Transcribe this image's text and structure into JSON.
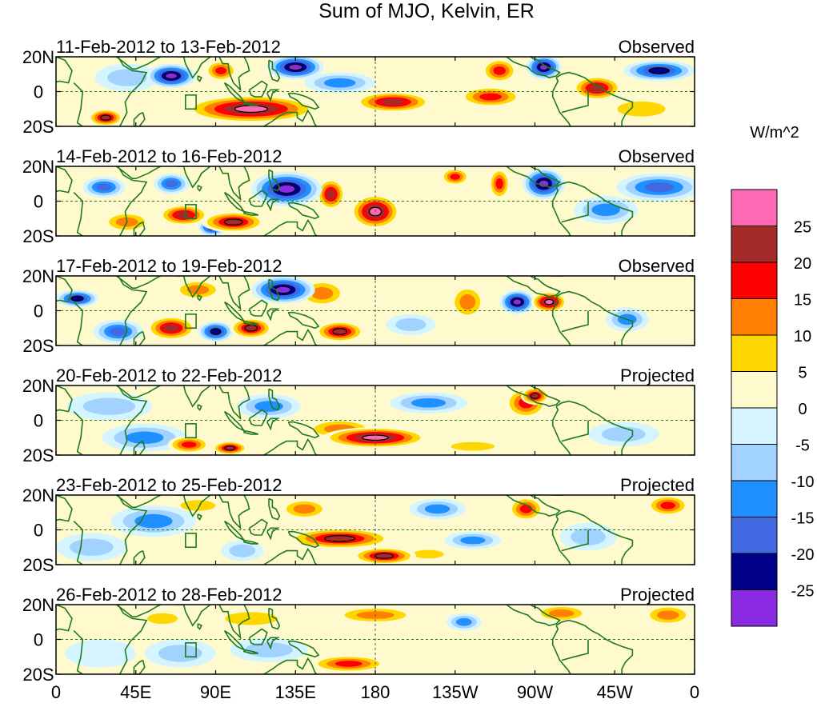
{
  "chart_data": {
    "type": "heatmap",
    "title": "Sum of MJO, Kelvin, ER",
    "colorbar": {
      "units": "W/m^2",
      "bins": [
        {
          "color": "#ff69b4",
          "label": ""
        },
        {
          "color": "#a52a2a",
          "label": "25"
        },
        {
          "color": "#ff0000",
          "label": "20"
        },
        {
          "color": "#ff7f00",
          "label": "15"
        },
        {
          "color": "#ffd700",
          "label": "10"
        },
        {
          "color": "#fffacd",
          "label": "5"
        },
        {
          "color": "#d4f5ff",
          "label": "0"
        },
        {
          "color": "#a2d2ff",
          "label": "-5"
        },
        {
          "color": "#1e90ff",
          "label": "-10"
        },
        {
          "color": "#4169e1",
          "label": "-15"
        },
        {
          "color": "#00008b",
          "label": "-20"
        },
        {
          "color": "#8a2be2",
          "label": "-25"
        }
      ]
    },
    "lon_range": [
      0,
      360
    ],
    "lat_range": [
      -20,
      20
    ],
    "x_ticks": [
      {
        "lon": 0,
        "label": "0"
      },
      {
        "lon": 45,
        "label": "45E"
      },
      {
        "lon": 90,
        "label": "90E"
      },
      {
        "lon": 135,
        "label": "135E"
      },
      {
        "lon": 180,
        "label": "180"
      },
      {
        "lon": 225,
        "label": "135W"
      },
      {
        "lon": 270,
        "label": "90W"
      },
      {
        "lon": 315,
        "label": "45W"
      },
      {
        "lon": 360,
        "label": "0"
      }
    ],
    "y_ticks": [
      {
        "lat": 20,
        "label": "20N"
      },
      {
        "lat": 0,
        "label": "0"
      },
      {
        "lat": -20,
        "label": "20S"
      }
    ],
    "panels": [
      {
        "date": "11-Feb-2012 to 13-Feb-2012",
        "type": "Observed",
        "features": [
          {
            "lon": 65,
            "lat": 9,
            "rx": 14,
            "ry": 7,
            "v": -29
          },
          {
            "lon": 93,
            "lat": 12,
            "rx": 9,
            "ry": 6,
            "v": 17
          },
          {
            "lon": 135,
            "lat": 14,
            "rx": 16,
            "ry": 7,
            "v": -29
          },
          {
            "lon": 110,
            "lat": -10,
            "rx": 38,
            "ry": 8,
            "v": 29
          },
          {
            "lon": 28,
            "lat": -15,
            "rx": 10,
            "ry": 5,
            "v": 26
          },
          {
            "lon": 190,
            "lat": -6,
            "rx": 22,
            "ry": 6,
            "v": 22
          },
          {
            "lon": 245,
            "lat": -3,
            "rx": 18,
            "ry": 6,
            "v": 17
          },
          {
            "lon": 250,
            "lat": 12,
            "rx": 10,
            "ry": 7,
            "v": 17
          },
          {
            "lon": 275,
            "lat": 14,
            "rx": 10,
            "ry": 7,
            "v": -29
          },
          {
            "lon": 305,
            "lat": 2,
            "rx": 14,
            "ry": 7,
            "v": 22
          },
          {
            "lon": 340,
            "lat": 12,
            "rx": 20,
            "ry": 6,
            "v": -24
          },
          {
            "lon": 160,
            "lat": 5,
            "rx": 20,
            "ry": 6,
            "v": -12
          },
          {
            "lon": 40,
            "lat": 8,
            "rx": 18,
            "ry": 8,
            "v": -8
          },
          {
            "lon": 330,
            "lat": -10,
            "rx": 22,
            "ry": 7,
            "v": 8
          }
        ]
      },
      {
        "date": "14-Feb-2012 to 16-Feb-2012",
        "type": "Observed",
        "features": [
          {
            "lon": 130,
            "lat": 7,
            "rx": 20,
            "ry": 10,
            "v": -29
          },
          {
            "lon": 72,
            "lat": -8,
            "rx": 14,
            "ry": 6,
            "v": 22
          },
          {
            "lon": 100,
            "lat": -12,
            "rx": 18,
            "ry": 6,
            "v": 26
          },
          {
            "lon": 180,
            "lat": -6,
            "rx": 14,
            "ry": 10,
            "v": 29
          },
          {
            "lon": 155,
            "lat": 4,
            "rx": 8,
            "ry": 9,
            "v": 22
          },
          {
            "lon": 88,
            "lat": -15,
            "rx": 8,
            "ry": 5,
            "v": -24
          },
          {
            "lon": 65,
            "lat": 10,
            "rx": 10,
            "ry": 6,
            "v": -17
          },
          {
            "lon": 27,
            "lat": 8,
            "rx": 12,
            "ry": 6,
            "v": -17
          },
          {
            "lon": 275,
            "lat": 10,
            "rx": 12,
            "ry": 9,
            "v": -29
          },
          {
            "lon": 225,
            "lat": 14,
            "rx": 8,
            "ry": 5,
            "v": 17
          },
          {
            "lon": 250,
            "lat": 10,
            "rx": 6,
            "ry": 9,
            "v": 17
          },
          {
            "lon": 340,
            "lat": 8,
            "rx": 24,
            "ry": 8,
            "v": -19
          },
          {
            "lon": 310,
            "lat": -5,
            "rx": 18,
            "ry": 8,
            "v": -12
          },
          {
            "lon": 40,
            "lat": -12,
            "rx": 14,
            "ry": 6,
            "v": 12
          }
        ]
      },
      {
        "date": "17-Feb-2012 to 19-Feb-2012",
        "type": "Observed",
        "features": [
          {
            "lon": 128,
            "lat": 12,
            "rx": 18,
            "ry": 8,
            "v": -29
          },
          {
            "lon": 65,
            "lat": -10,
            "rx": 14,
            "ry": 7,
            "v": 22
          },
          {
            "lon": 90,
            "lat": -12,
            "rx": 10,
            "ry": 6,
            "v": -24
          },
          {
            "lon": 110,
            "lat": -10,
            "rx": 12,
            "ry": 6,
            "v": 26
          },
          {
            "lon": 160,
            "lat": -12,
            "rx": 14,
            "ry": 6,
            "v": 26
          },
          {
            "lon": 12,
            "lat": 7,
            "rx": 12,
            "ry": 5,
            "v": -24
          },
          {
            "lon": 35,
            "lat": -12,
            "rx": 14,
            "ry": 7,
            "v": -17
          },
          {
            "lon": 80,
            "lat": 12,
            "rx": 14,
            "ry": 6,
            "v": 14
          },
          {
            "lon": 232,
            "lat": 5,
            "rx": 10,
            "ry": 10,
            "v": 12
          },
          {
            "lon": 260,
            "lat": 5,
            "rx": 10,
            "ry": 7,
            "v": -29
          },
          {
            "lon": 278,
            "lat": 5,
            "rx": 10,
            "ry": 6,
            "v": 29
          },
          {
            "lon": 322,
            "lat": -5,
            "rx": 12,
            "ry": 7,
            "v": -15
          },
          {
            "lon": 150,
            "lat": 10,
            "rx": 14,
            "ry": 8,
            "v": 12
          },
          {
            "lon": 200,
            "lat": -8,
            "rx": 14,
            "ry": 6,
            "v": -10
          }
        ]
      },
      {
        "date": "20-Feb-2012 to 22-Feb-2012",
        "type": "Projected",
        "features": [
          {
            "lon": 180,
            "lat": -10,
            "rx": 30,
            "ry": 6,
            "v": 29
          },
          {
            "lon": 160,
            "lat": -5,
            "rx": 20,
            "ry": 6,
            "v": 14
          },
          {
            "lon": 75,
            "lat": -14,
            "rx": 12,
            "ry": 5,
            "v": 20
          },
          {
            "lon": 98,
            "lat": -16,
            "rx": 10,
            "ry": 4,
            "v": 24
          },
          {
            "lon": 265,
            "lat": 10,
            "rx": 12,
            "ry": 9,
            "v": 17
          },
          {
            "lon": 270,
            "lat": 14,
            "rx": 8,
            "ry": 5,
            "v": 24
          },
          {
            "lon": 50,
            "lat": -10,
            "rx": 24,
            "ry": 8,
            "v": -12
          },
          {
            "lon": 30,
            "lat": 8,
            "rx": 24,
            "ry": 8,
            "v": -8
          },
          {
            "lon": 120,
            "lat": 8,
            "rx": 18,
            "ry": 7,
            "v": -12
          },
          {
            "lon": 210,
            "lat": 10,
            "rx": 22,
            "ry": 6,
            "v": -12
          },
          {
            "lon": 320,
            "lat": -8,
            "rx": 20,
            "ry": 7,
            "v": -8
          },
          {
            "lon": 235,
            "lat": -15,
            "rx": 20,
            "ry": 4,
            "v": 10
          }
        ]
      },
      {
        "date": "23-Feb-2012 to 25-Feb-2012",
        "type": "Projected",
        "features": [
          {
            "lon": 160,
            "lat": -5,
            "rx": 30,
            "ry": 6,
            "v": 24
          },
          {
            "lon": 185,
            "lat": -15,
            "rx": 18,
            "ry": 5,
            "v": 24
          },
          {
            "lon": 140,
            "lat": 12,
            "rx": 14,
            "ry": 6,
            "v": 14
          },
          {
            "lon": 265,
            "lat": 12,
            "rx": 10,
            "ry": 7,
            "v": 17
          },
          {
            "lon": 345,
            "lat": 14,
            "rx": 12,
            "ry": 6,
            "v": 17
          },
          {
            "lon": 55,
            "lat": 5,
            "rx": 24,
            "ry": 9,
            "v": -12
          },
          {
            "lon": 20,
            "lat": -10,
            "rx": 20,
            "ry": 8,
            "v": -10
          },
          {
            "lon": 105,
            "lat": -12,
            "rx": 12,
            "ry": 6,
            "v": -10
          },
          {
            "lon": 215,
            "lat": 12,
            "rx": 16,
            "ry": 6,
            "v": -14
          },
          {
            "lon": 235,
            "lat": -6,
            "rx": 16,
            "ry": 5,
            "v": -12
          },
          {
            "lon": 300,
            "lat": -4,
            "rx": 16,
            "ry": 8,
            "v": -10
          },
          {
            "lon": 80,
            "lat": 14,
            "rx": 16,
            "ry": 5,
            "v": 8
          },
          {
            "lon": 210,
            "lat": -14,
            "rx": 14,
            "ry": 4,
            "v": 8
          }
        ]
      },
      {
        "date": "26-Feb-2012 to 28-Feb-2012",
        "type": "Projected",
        "features": [
          {
            "lon": 165,
            "lat": -14,
            "rx": 22,
            "ry": 5,
            "v": 18
          },
          {
            "lon": 180,
            "lat": 14,
            "rx": 24,
            "ry": 5,
            "v": 12
          },
          {
            "lon": 110,
            "lat": 12,
            "rx": 24,
            "ry": 6,
            "v": 10
          },
          {
            "lon": 285,
            "lat": 15,
            "rx": 16,
            "ry": 5,
            "v": 14
          },
          {
            "lon": 345,
            "lat": 14,
            "rx": 14,
            "ry": 6,
            "v": 12
          },
          {
            "lon": 70,
            "lat": -8,
            "rx": 20,
            "ry": 8,
            "v": -10
          },
          {
            "lon": 120,
            "lat": -6,
            "rx": 22,
            "ry": 7,
            "v": -10
          },
          {
            "lon": 230,
            "lat": 10,
            "rx": 10,
            "ry": 5,
            "v": -14
          },
          {
            "lon": 25,
            "lat": -8,
            "rx": 20,
            "ry": 8,
            "v": -6
          },
          {
            "lon": 60,
            "lat": 12,
            "rx": 14,
            "ry": 5,
            "v": 8
          },
          {
            "lon": 225,
            "lat": -8,
            "rx": 24,
            "ry": 6,
            "v": 5
          }
        ]
      }
    ]
  }
}
